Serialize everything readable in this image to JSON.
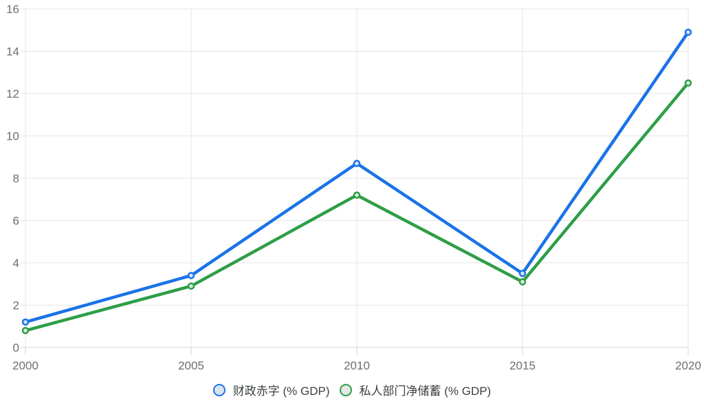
{
  "chart_data": {
    "type": "line",
    "x": [
      2000,
      2005,
      2010,
      2015,
      2020
    ],
    "series": [
      {
        "name": "财政赤字 (% GDP)",
        "values": [
          1.2,
          3.4,
          8.7,
          3.5,
          14.9
        ],
        "color": "#1a73e8",
        "marker_fill": "#d6e3f5",
        "legend_fill": "#d9e3f0"
      },
      {
        "name": "私人部门净储蓄 (% GDP)",
        "values": [
          0.8,
          2.9,
          7.2,
          3.1,
          12.5
        ],
        "color": "#2e9e47",
        "marker_fill": "#ddeadf",
        "legend_fill": "#e5e7e5"
      }
    ],
    "title": "",
    "xlabel": "",
    "ylabel": "",
    "ylim": [
      0,
      16
    ],
    "y_tick_step": 2,
    "y_tick_labels": [
      "0",
      "2",
      "4",
      "6",
      "8",
      "10",
      "12",
      "14",
      "16"
    ],
    "x_tick_labels": [
      "2000",
      "2005",
      "2010",
      "2015",
      "2020"
    ],
    "grid": true,
    "legend_position": "bottom"
  },
  "colors": {
    "background": "#ffffff",
    "grid_line": "#e5e5e5",
    "axis_line": "#d6d6d6",
    "tick_mark": "#d2d2d2",
    "tick_label": "#6b6e71",
    "legend_text": "#3c4043"
  }
}
